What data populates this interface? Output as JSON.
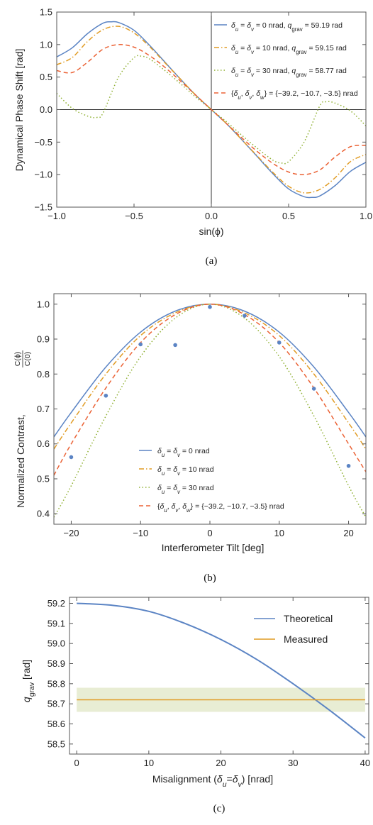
{
  "colors": {
    "blue": "#5b84c4",
    "orange": "#e19c24",
    "green": "#8fb032",
    "red": "#eb6235",
    "band": "#e8edd4",
    "frame": "#555555"
  },
  "chart_data": [
    {
      "type": "line",
      "caption": "(a)",
      "xlabel": "sin(ϕ)",
      "ylabel": "Dynamical Phase Shift [rad]",
      "xlim": [
        -1,
        1
      ],
      "ylim": [
        -1.5,
        1.5
      ],
      "xticks": [
        -1.0,
        -0.5,
        0.0,
        0.5,
        1.0
      ],
      "xtick_labels": [
        "−1.0",
        "−0.5",
        "0.0",
        "0.5",
        "1.0"
      ],
      "yticks": [
        -1.5,
        -1.0,
        -0.5,
        0.0,
        0.5,
        1.0,
        1.5
      ],
      "ytick_labels": [
        "−1.5",
        "−1.0",
        "−0.5",
        "0.0",
        "0.5",
        "1.0",
        "1.5"
      ],
      "legend_position": "top-right",
      "zero_lines": true,
      "series": [
        {
          "name": "δu = δv = 0 nrad,  qgrav = 59.19 rad",
          "color_key": "blue",
          "dash": "solid",
          "x": [
            -1.0,
            -0.9,
            -0.8,
            -0.7,
            -0.65,
            -0.6,
            -0.5,
            -0.4,
            -0.3,
            -0.2,
            -0.1,
            0.0,
            0.1,
            0.2,
            0.3,
            0.4,
            0.5,
            0.6,
            0.65,
            0.7,
            0.8,
            0.9,
            1.0
          ],
          "y": [
            0.81,
            0.95,
            1.17,
            1.33,
            1.35,
            1.34,
            1.22,
            0.99,
            0.73,
            0.47,
            0.22,
            0.0,
            -0.22,
            -0.47,
            -0.73,
            -0.99,
            -1.22,
            -1.34,
            -1.35,
            -1.33,
            -1.17,
            -0.95,
            -0.81
          ]
        },
        {
          "name": "δu = δv = 10 nrad,  qgrav = 59.15 rad",
          "color_key": "orange",
          "dash": "dashdot",
          "x": [
            -1.0,
            -0.9,
            -0.8,
            -0.7,
            -0.6,
            -0.5,
            -0.4,
            -0.3,
            -0.2,
            -0.1,
            0.0,
            0.1,
            0.2,
            0.3,
            0.4,
            0.5,
            0.6,
            0.7,
            0.8,
            0.9,
            1.0
          ],
          "y": [
            0.69,
            0.8,
            1.05,
            1.23,
            1.28,
            1.18,
            0.97,
            0.72,
            0.47,
            0.22,
            0.0,
            -0.22,
            -0.47,
            -0.72,
            -0.97,
            -1.18,
            -1.28,
            -1.23,
            -1.05,
            -0.8,
            -0.69
          ]
        },
        {
          "name": "δu = δv = 30 nrad,  qgrav = 58.77 rad",
          "color_key": "green",
          "dash": "dotted",
          "x": [
            -1.0,
            -0.9,
            -0.8,
            -0.74,
            -0.7,
            -0.6,
            -0.5,
            -0.45,
            -0.4,
            -0.3,
            -0.2,
            -0.1,
            0.0,
            0.1,
            0.2,
            0.3,
            0.4,
            0.45,
            0.5,
            0.6,
            0.7,
            0.74,
            0.8,
            0.9,
            1.0
          ],
          "y": [
            0.25,
            0.02,
            -0.1,
            -0.12,
            -0.05,
            0.5,
            0.8,
            0.82,
            0.78,
            0.6,
            0.4,
            0.19,
            0.0,
            -0.19,
            -0.4,
            -0.6,
            -0.78,
            -0.82,
            -0.8,
            -0.5,
            0.05,
            0.12,
            0.1,
            -0.02,
            -0.25
          ]
        },
        {
          "name": "{δu, δv, δw} = {−39.2, −10.7, −3.5} nrad",
          "color_key": "red",
          "dash": "dashed",
          "x": [
            -1.0,
            -0.9,
            -0.8,
            -0.7,
            -0.6,
            -0.5,
            -0.4,
            -0.3,
            -0.2,
            -0.1,
            0.0,
            0.1,
            0.2,
            0.3,
            0.4,
            0.5,
            0.6,
            0.7,
            0.8,
            0.9,
            1.0
          ],
          "y": [
            0.6,
            0.57,
            0.73,
            0.93,
            1.0,
            0.96,
            0.83,
            0.65,
            0.44,
            0.22,
            0.0,
            -0.22,
            -0.44,
            -0.65,
            -0.83,
            -0.96,
            -1.0,
            -0.93,
            -0.73,
            -0.57,
            -0.55
          ]
        }
      ]
    },
    {
      "type": "line",
      "caption": "(b)",
      "xlabel": "Interferometer Tilt [deg]",
      "ylabel": "Normalized Contrast,",
      "ylabel_fraction": {
        "numerator": "C(ϕ)",
        "denominator": "C(0)"
      },
      "xlim": [
        -22.5,
        22.5
      ],
      "ylim": [
        0.37,
        1.03
      ],
      "xticks": [
        -20,
        -10,
        0,
        10,
        20
      ],
      "xtick_labels": [
        "−20",
        "−10",
        "0",
        "10",
        "20"
      ],
      "yticks": [
        0.4,
        0.5,
        0.6,
        0.7,
        0.8,
        0.9,
        1.0
      ],
      "ytick_labels": [
        "0.4",
        "0.5",
        "0.6",
        "0.7",
        "0.8",
        "0.9",
        "1.0"
      ],
      "legend_position": "bottom-left",
      "series": [
        {
          "name": "δu = δv = 0 nrad",
          "color_key": "blue",
          "dash": "solid",
          "x": [
            -22.5,
            -20,
            -15,
            -10,
            -5,
            0,
            5,
            10,
            15,
            20,
            22.5
          ],
          "y": [
            0.62,
            0.69,
            0.82,
            0.92,
            0.98,
            1.0,
            0.98,
            0.92,
            0.82,
            0.69,
            0.62
          ]
        },
        {
          "name": "δu = δv = 10 nrad",
          "color_key": "orange",
          "dash": "dashdot",
          "x": [
            -22.5,
            -20,
            -15,
            -10,
            -5,
            0,
            5,
            10,
            15,
            20,
            22.5
          ],
          "y": [
            0.585,
            0.66,
            0.8,
            0.91,
            0.975,
            1.0,
            0.975,
            0.91,
            0.8,
            0.66,
            0.585
          ]
        },
        {
          "name": "δu = δv = 30 nrad",
          "color_key": "green",
          "dash": "dotted",
          "x": [
            -22.5,
            -20,
            -15,
            -10,
            -5,
            0,
            5,
            10,
            15,
            20,
            22.5
          ],
          "y": [
            0.39,
            0.48,
            0.68,
            0.85,
            0.96,
            1.0,
            0.96,
            0.85,
            0.68,
            0.48,
            0.39
          ]
        },
        {
          "name": "{δu, δv, δw} = {−39.2, −10.7, −3.5} nrad",
          "color_key": "red",
          "dash": "dashed",
          "x": [
            -22.5,
            -20,
            -15,
            -10,
            -5,
            0,
            5,
            10,
            15,
            20,
            22.5
          ],
          "y": [
            0.51,
            0.6,
            0.76,
            0.89,
            0.97,
            1.0,
            0.97,
            0.89,
            0.76,
            0.6,
            0.52
          ]
        }
      ],
      "points": {
        "color_key": "blue",
        "x": [
          -20,
          -15,
          -10,
          -5,
          0,
          5,
          10,
          15,
          20
        ],
        "y": [
          0.562,
          0.738,
          0.885,
          0.883,
          0.992,
          0.967,
          0.89,
          0.758,
          0.537
        ]
      }
    },
    {
      "type": "line",
      "caption": "(c)",
      "xlabel": "Misalignment (δu=δv) [nrad]",
      "ylabel": "qgrav [rad]",
      "xlim": [
        -1,
        40.5
      ],
      "ylim": [
        58.45,
        59.23
      ],
      "xticks": [
        0,
        10,
        20,
        30,
        40
      ],
      "xtick_labels": [
        "0",
        "10",
        "20",
        "30",
        "40"
      ],
      "yticks": [
        58.5,
        58.6,
        58.7,
        58.8,
        58.9,
        59.0,
        59.1,
        59.2
      ],
      "ytick_labels": [
        "58.5",
        "58.6",
        "58.7",
        "58.8",
        "58.9",
        "59.0",
        "59.1",
        "59.2"
      ],
      "legend_position": "top-right",
      "series": [
        {
          "name": "Theoretical",
          "color_key": "blue",
          "dash": "solid",
          "x": [
            0,
            5,
            10,
            15,
            20,
            25,
            30,
            35,
            40
          ],
          "y": [
            59.2,
            59.19,
            59.16,
            59.1,
            59.02,
            58.92,
            58.8,
            58.67,
            58.53
          ]
        },
        {
          "name": "Measured",
          "color_key": "orange",
          "dash": "solid",
          "x": [
            0,
            40
          ],
          "y": [
            58.72,
            58.72
          ]
        }
      ],
      "band": {
        "color_key": "band",
        "x": [
          0,
          40
        ],
        "ymin": 58.66,
        "ymax": 58.78
      }
    }
  ]
}
